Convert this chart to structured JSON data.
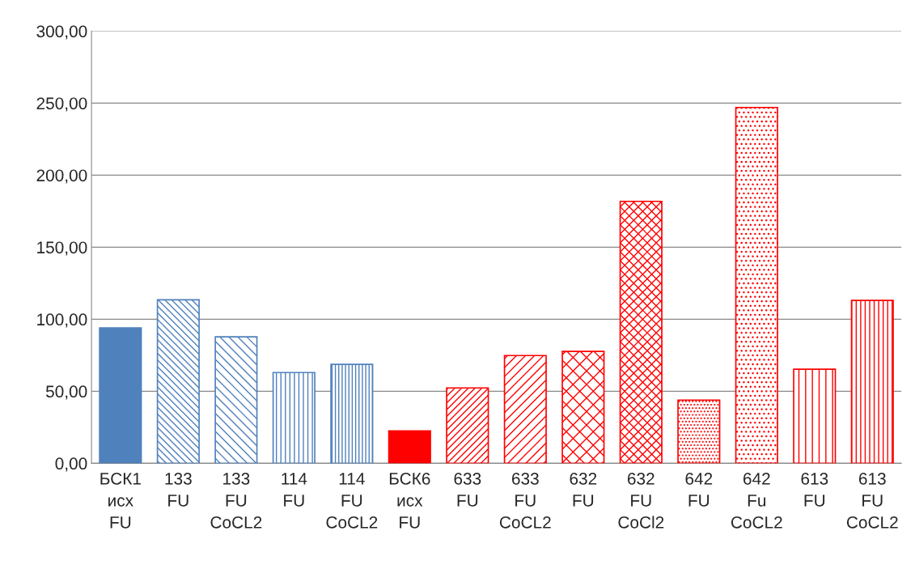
{
  "chart_data": {
    "type": "bar",
    "categories": [
      "БСК1\nисх\nFU",
      "133\nFU",
      "133\nFU\nCoCL2",
      "114\nFU",
      "114\nFU\nCoCL2",
      "БСК6\nисх\nFU",
      "633\nFU",
      "633\nFU\nCoCL2",
      "632\nFU",
      "632\nFU\nCoCl2",
      "642\nFU",
      "642\nFu\nCoCL2",
      "613\nFU",
      "613\nFU\nCoCL2"
    ],
    "values": [
      94.0,
      113.5,
      87.8,
      63.0,
      68.7,
      22.5,
      52.3,
      74.8,
      77.7,
      181.8,
      43.9,
      247.0,
      65.3,
      113.1
    ],
    "colors": [
      "#4f81bd",
      "#4f81bd",
      "#4f81bd",
      "#4f81bd",
      "#4f81bd",
      "#ff0000",
      "#ff0000",
      "#ff0000",
      "#ff0000",
      "#ff0000",
      "#ff0000",
      "#ff0000",
      "#ff0000",
      "#ff0000"
    ],
    "ylim": [
      0,
      300
    ],
    "yticks": [
      {
        "value": 0,
        "label": "0,00"
      },
      {
        "value": 50,
        "label": "50,00"
      },
      {
        "value": 100,
        "label": "100,00"
      },
      {
        "value": 150,
        "label": "150,00"
      },
      {
        "value": 200,
        "label": "200,00"
      },
      {
        "value": 250,
        "label": "250,00"
      },
      {
        "value": 300,
        "label": "300,00"
      }
    ],
    "grid": "y",
    "legend": false
  }
}
